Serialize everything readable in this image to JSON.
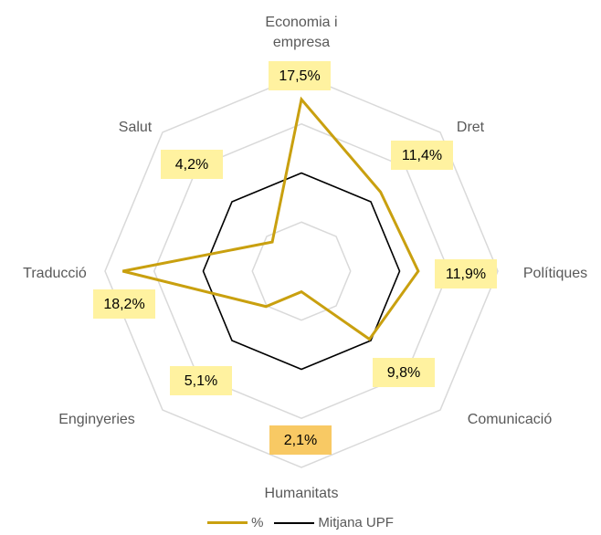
{
  "chart_data": {
    "type": "radar",
    "categories": [
      "Economia i empresa",
      "Dret",
      "Polítiques",
      "Comunicació",
      "Humanitats",
      "Enginyeries",
      "Traducció",
      "Salut"
    ],
    "series": [
      {
        "name": "%",
        "color": "#c9a00f",
        "values": [
          17.5,
          11.4,
          11.9,
          9.8,
          2.1,
          5.1,
          18.2,
          4.2
        ],
        "value_labels": [
          "17,5%",
          "11,4%",
          "11,9%",
          "9,8%",
          "2,1%",
          "5,1%",
          "18,2%",
          "4,2%"
        ],
        "label_colors": [
          "#fff2a0",
          "#fff2a0",
          "#fff2a0",
          "#fff2a0",
          "#f8c964",
          "#fff2a0",
          "#fff2a0",
          "#fff2a0"
        ]
      },
      {
        "name": "Mitjana UPF",
        "color": "#000000",
        "values": [
          10,
          10,
          10,
          10,
          10,
          10,
          10,
          10
        ]
      }
    ],
    "ylim": [
      0,
      20
    ],
    "yticks": [
      0,
      5,
      10,
      15,
      20
    ],
    "grid": true,
    "legend": "bottom"
  }
}
